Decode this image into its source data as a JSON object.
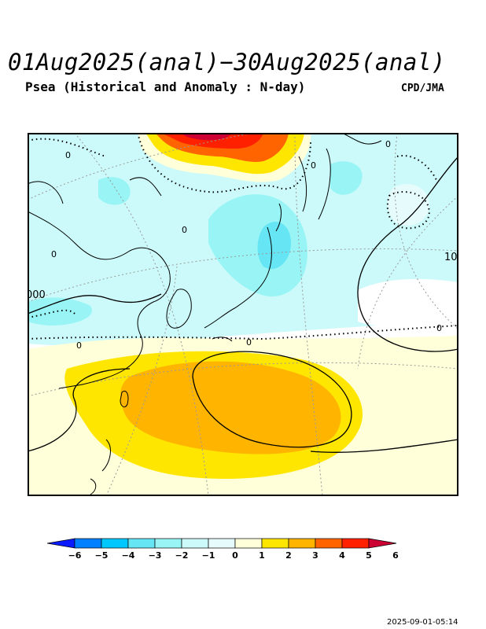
{
  "header": {
    "title": "01Aug2025(anal)−30Aug2025(anal)",
    "subtitle": "Psea (Historical and Anomaly : N-day)",
    "source": "CPD/JMA"
  },
  "map": {
    "contour_labels": [
      "0",
      "0",
      "0",
      "0",
      "0",
      "0",
      "0",
      "0",
      "10",
      "000"
    ],
    "anomaly_colors": {
      "neg6": "#0a1cff",
      "neg5": "#0080ff",
      "neg4": "#00c8ff",
      "neg3": "#66e6f5",
      "neg2": "#99f5f5",
      "neg1": "#ccfafa",
      "zero": "#e6fcfc",
      "pos1": "#ffffd9",
      "pos2": "#ffe600",
      "pos3": "#ffb400",
      "pos4": "#ff6400",
      "pos5": "#ff2000",
      "pos6": "#cc0033"
    }
  },
  "colorbar": {
    "ticks": [
      "−6",
      "−5",
      "−4",
      "−3",
      "−2",
      "−1",
      "0",
      "1",
      "2",
      "3",
      "4",
      "5",
      "6"
    ]
  },
  "timestamp": "2025-09-01-05:14"
}
